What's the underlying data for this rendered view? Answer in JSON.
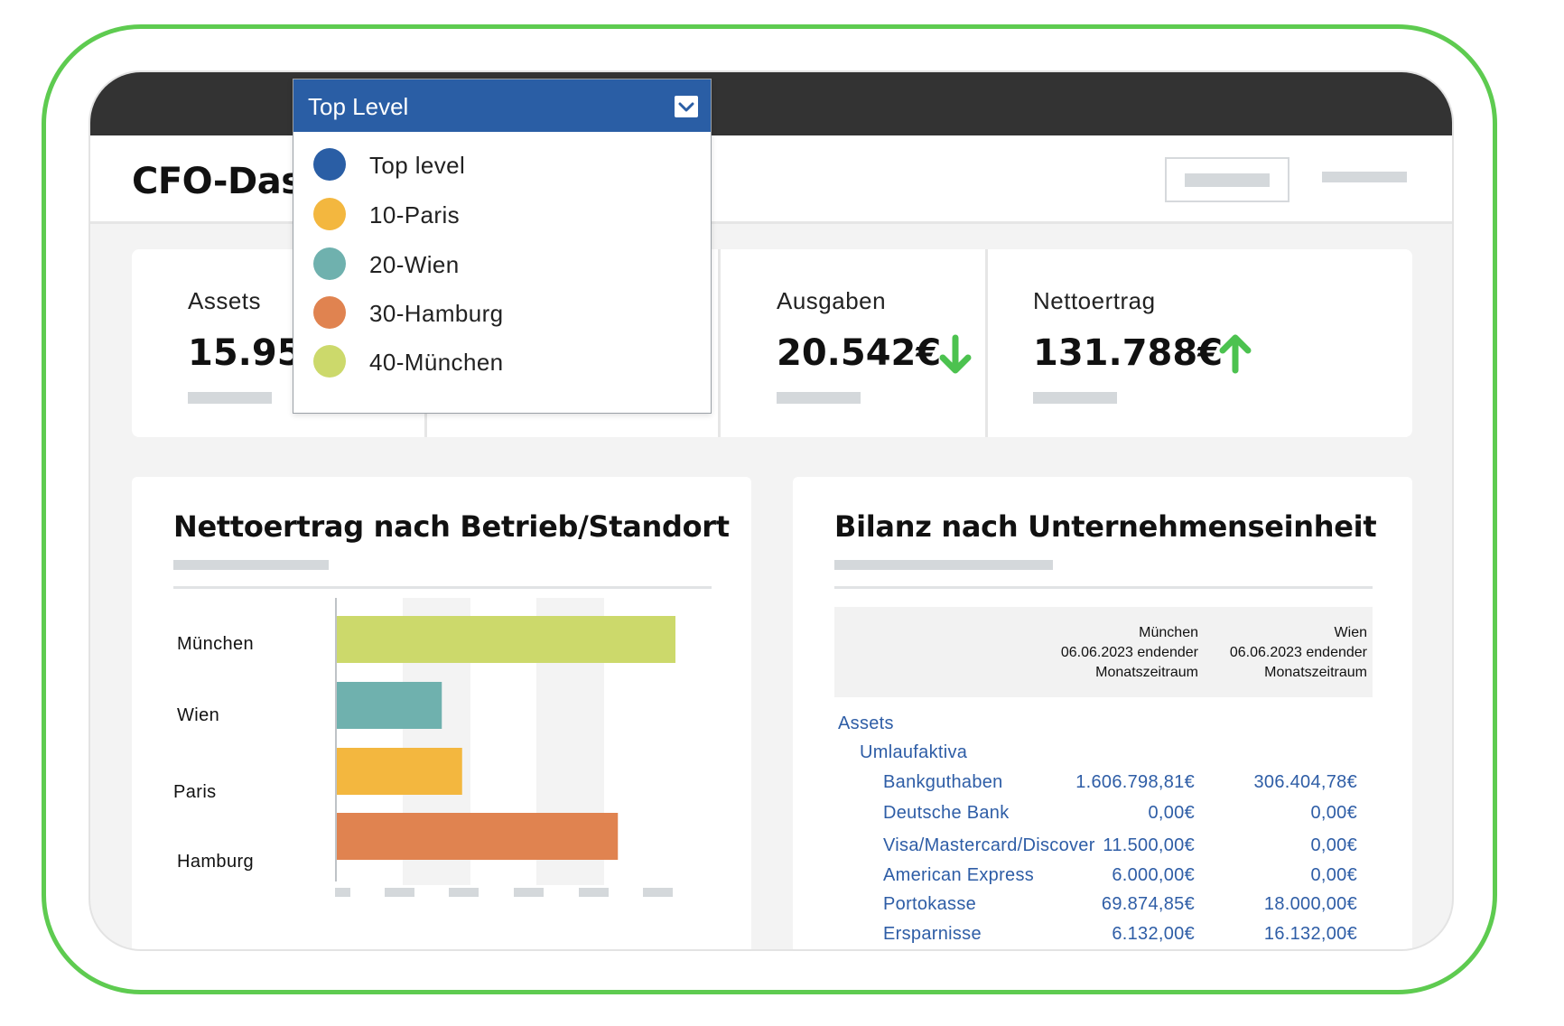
{
  "dashboard": {
    "title": "CFO-Dasl"
  },
  "dropdown": {
    "selected": "Top Level",
    "options": [
      {
        "label": "Top level",
        "color": "#2a5ea5"
      },
      {
        "label": "10-Paris",
        "color": "#f3b73f"
      },
      {
        "label": "20-Wien",
        "color": "#6fb1ae"
      },
      {
        "label": "30-Hamburg",
        "color": "#e08350"
      },
      {
        "label": "40-München",
        "color": "#ccd96b"
      }
    ]
  },
  "kpis": [
    {
      "label": "Assets",
      "value": "15.95",
      "trend": ""
    },
    {
      "label": "",
      "value": "",
      "trend": "up"
    },
    {
      "label": "Ausgaben",
      "value": "20.542€",
      "trend": "down"
    },
    {
      "label": "Nettoertrag",
      "value": "131.788€",
      "trend": "up"
    }
  ],
  "colors": {
    "trend": "#4cc24f",
    "accent": "#2a5ea5",
    "frame": "#5ecb50",
    "link_text": "#2e5da6"
  },
  "chart_card": {
    "title": "Nettoertrag nach Betrieb/Standort"
  },
  "chart_data": {
    "type": "bar",
    "orientation": "horizontal",
    "categories": [
      "München",
      "Wien",
      "Paris",
      "Hamburg"
    ],
    "values": [
      100,
      31,
      37,
      83
    ],
    "colors": [
      "#ccd96b",
      "#6fb1ae",
      "#f3b73f",
      "#e08350"
    ],
    "xlim": [
      0,
      100
    ]
  },
  "balance_card": {
    "title": "Bilanz nach Unternehmenseinheit",
    "columns": [
      {
        "line1": "München",
        "line2": "06.06.2023 endender",
        "line3": "Monatszeitraum"
      },
      {
        "line1": "Wien",
        "line2": "06.06.2023 endender",
        "line3": "Monatszeitraum"
      }
    ],
    "rows": [
      {
        "label": "Assets",
        "level": 0,
        "v1": "",
        "v2": ""
      },
      {
        "label": "Umlaufaktiva",
        "level": 1,
        "v1": "",
        "v2": ""
      },
      {
        "label": "Bankguthaben",
        "level": 2,
        "v1": "1.606.798,81€",
        "v2": "306.404,78€"
      },
      {
        "label": "Deutsche Bank",
        "level": 2,
        "v1": "0,00€",
        "v2": "0,00€"
      },
      {
        "label": "Visa/Mastercard/Discover",
        "level": 2,
        "v1": "11.500,00€",
        "v2": "0,00€"
      },
      {
        "label": "American Express",
        "level": 2,
        "v1": "6.000,00€",
        "v2": "0,00€"
      },
      {
        "label": "Portokasse",
        "level": 2,
        "v1": "69.874,85€",
        "v2": "18.000,00€"
      },
      {
        "label": "Ersparnisse",
        "level": 2,
        "v1": "6.132,00€",
        "v2": "16.132,00€"
      }
    ]
  }
}
